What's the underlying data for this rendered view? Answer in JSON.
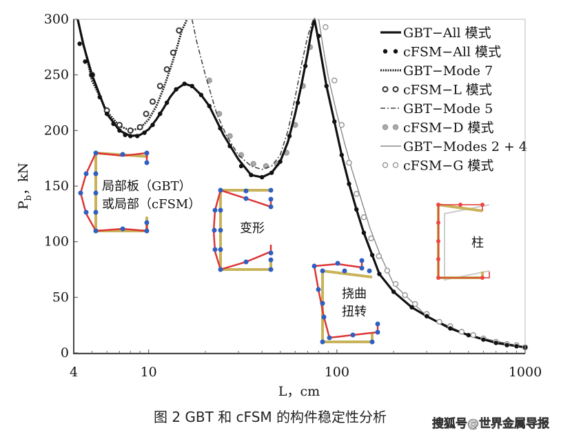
{
  "chart_data": {
    "type": "line",
    "title": "",
    "xlabel": "L，cm",
    "ylabel": "Pb，kN",
    "ylabel_main": "P",
    "ylabel_sub": "b",
    "ylabel_unit": "，kN",
    "xscale": "log",
    "xlim": [
      4,
      1000
    ],
    "ylim": [
      0,
      300
    ],
    "xticks": [
      "4",
      "10",
      "100",
      "1000"
    ],
    "xtick_values": [
      4,
      10,
      100,
      1000
    ],
    "yticks": [
      "0",
      "50",
      "100",
      "150",
      "200",
      "250",
      "300"
    ],
    "ytick_values": [
      0,
      50,
      100,
      150,
      200,
      250,
      300
    ],
    "legend_position": "top-right",
    "series": [
      {
        "name": "GBT−All 模式",
        "style": "solid-thick",
        "color": "#111111",
        "x": [
          4.2,
          4.5,
          5,
          6,
          7,
          8,
          9,
          10,
          11,
          12,
          13,
          14,
          15.5,
          17,
          19,
          21,
          25,
          30,
          35,
          40,
          45,
          50,
          55,
          60,
          65,
          70,
          73,
          76,
          80,
          88,
          97,
          106,
          116,
          127,
          139,
          154,
          168,
          200,
          250,
          300,
          400,
          500,
          700,
          1000
        ],
        "y": [
          300,
          277,
          250,
          215,
          200,
          195,
          196,
          201,
          210,
          220,
          230,
          237,
          242,
          240,
          232,
          222,
          196,
          174,
          160,
          158,
          162,
          172,
          190,
          215,
          242,
          270,
          288,
          300,
          280,
          240,
          208,
          178,
          152,
          129,
          108,
          88,
          71,
          55,
          41,
          33,
          22,
          16,
          9,
          5
        ]
      },
      {
        "name": "cFSM−All 模式",
        "style": "filled-dots",
        "color": "#111111",
        "x": [
          4.3,
          4.6,
          5,
          5.5,
          6,
          6.5,
          7,
          7.5,
          8,
          8.7,
          9.5,
          10.5,
          11.5,
          12.5,
          14,
          15.5,
          17,
          19,
          21,
          24,
          27,
          31,
          35,
          40,
          45,
          50,
          56,
          62,
          68,
          80,
          88,
          97,
          106,
          116,
          127,
          139,
          154,
          168,
          200,
          250,
          300,
          400,
          500,
          600,
          700,
          800,
          900,
          1000
        ],
        "y": [
          278,
          262,
          250,
          230,
          215,
          206,
          200,
          196,
          195,
          195,
          198,
          205,
          215,
          225,
          237,
          242,
          240,
          232,
          222,
          202,
          186,
          168,
          160,
          158,
          162,
          172,
          195,
          225,
          258,
          285,
          240,
          208,
          178,
          152,
          129,
          108,
          88,
          71,
          55,
          41,
          33,
          22,
          16,
          12,
          9,
          7,
          6,
          5
        ]
      },
      {
        "name": "GBT−Mode 7",
        "style": "dotted-thick",
        "color": "#222222",
        "x": [
          4.2,
          5,
          6,
          7,
          8,
          9,
          10,
          11,
          12,
          13,
          14,
          15,
          16
        ],
        "y": [
          300,
          245,
          217,
          204,
          200,
          202,
          210,
          222,
          238,
          255,
          272,
          290,
          300
        ]
      },
      {
        "name": "cFSM−L 模式",
        "style": "open-circles-dark",
        "color": "#333333",
        "x": [
          5,
          6,
          7,
          8,
          9,
          9.7,
          10.5,
          11.5,
          12.5,
          13.5,
          14.5
        ],
        "y": [
          250,
          218,
          205,
          200,
          203,
          215,
          226,
          240,
          255,
          270,
          290
        ]
      },
      {
        "name": "GBT−Mode 5",
        "style": "dash-dot",
        "color": "#444444",
        "x": [
          17,
          18,
          20,
          23,
          26,
          30,
          35,
          40,
          45,
          50,
          55,
          60,
          65,
          70,
          75
        ],
        "y": [
          300,
          280,
          250,
          215,
          195,
          178,
          168,
          165,
          168,
          178,
          200,
          230,
          260,
          285,
          300
        ]
      },
      {
        "name": "cFSM−D 模式",
        "style": "grey-dots",
        "color": "#999999",
        "x": [
          21,
          23.7,
          27,
          31,
          36,
          42,
          48,
          54,
          60,
          66,
          72
        ],
        "y": [
          245,
          215,
          195,
          178,
          170,
          168,
          170,
          180,
          205,
          240,
          275
        ]
      },
      {
        "name": "GBT−Modes 2 + 4",
        "style": "thin-grey",
        "color": "#888888",
        "x": [
          80,
          85,
          90,
          100,
          110,
          120,
          130,
          150,
          170,
          200,
          300,
          500,
          1000
        ],
        "y": [
          300,
          272,
          248,
          215,
          188,
          165,
          146,
          112,
          88,
          62,
          33,
          16,
          5
        ]
      },
      {
        "name": "cFSM−G 模式",
        "style": "open-circles-light",
        "color": "#888888",
        "x": [
          87,
          97,
          106,
          116,
          127,
          139,
          152,
          167,
          185,
          205,
          230,
          260,
          300,
          350,
          400,
          460,
          530,
          600,
          700,
          800,
          900,
          1000
        ],
        "y": [
          293,
          245,
          205,
          171,
          143,
          122,
          103,
          87,
          74,
          62,
          52,
          44,
          35,
          28,
          24,
          19,
          16,
          13,
          10,
          8,
          7,
          5
        ]
      }
    ],
    "annotations": {
      "local_line1": "局部板（GBT）",
      "local_line2": "或局部（cFSM）",
      "distortional": "变形",
      "lt_line1": "挠曲",
      "lt_line2": "扭转",
      "global": "柱"
    }
  },
  "caption": "图 2  GBT 和 cFSM 的构件稳定性分析",
  "watermark": "搜狐号@世界金属导报"
}
